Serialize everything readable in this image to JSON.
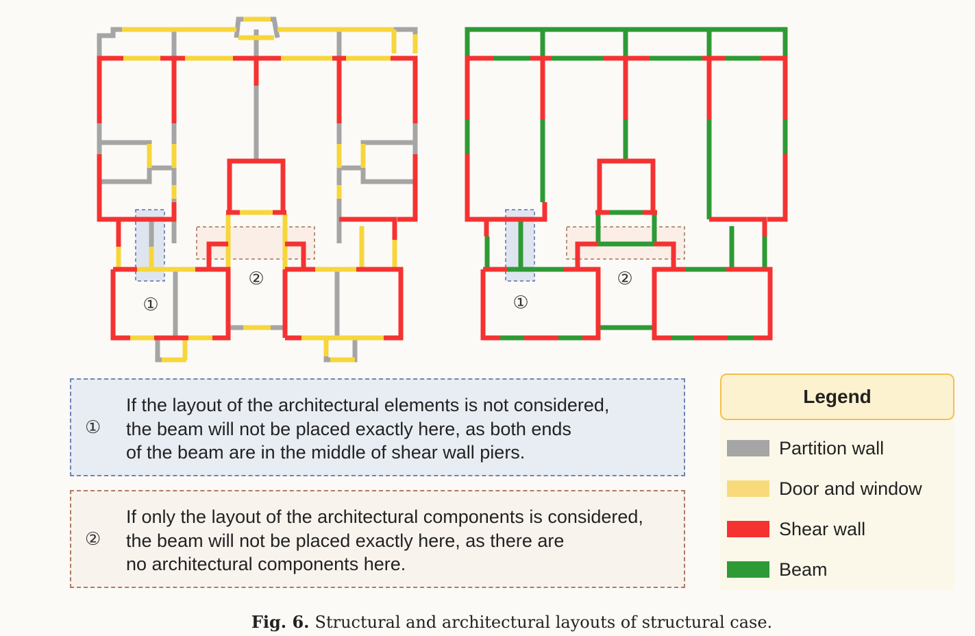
{
  "markers": {
    "one": "①",
    "two": "②"
  },
  "notes": [
    {
      "marker": "①",
      "lines": [
        "If the layout of the architectural elements is not considered,",
        "the beam will not be placed exactly here, as both ends",
        "of the beam are in the middle of shear wall piers."
      ]
    },
    {
      "marker": "②",
      "lines": [
        "If only the layout of the architectural components is considered,",
        "the beam will not be placed exactly here, as there are",
        "no architectural components here."
      ]
    }
  ],
  "legend": {
    "title": "Legend",
    "items": [
      {
        "label": "Partition wall",
        "color": "#a5a5a5"
      },
      {
        "label": "Door and window",
        "color": "#f9da7a"
      },
      {
        "label": "Shear wall",
        "color": "#f53232"
      },
      {
        "label": "Beam",
        "color": "#2e9a35"
      }
    ]
  },
  "caption": {
    "fig": "Fig. 6.",
    "text": "Structural and architectural layouts of structural case."
  }
}
